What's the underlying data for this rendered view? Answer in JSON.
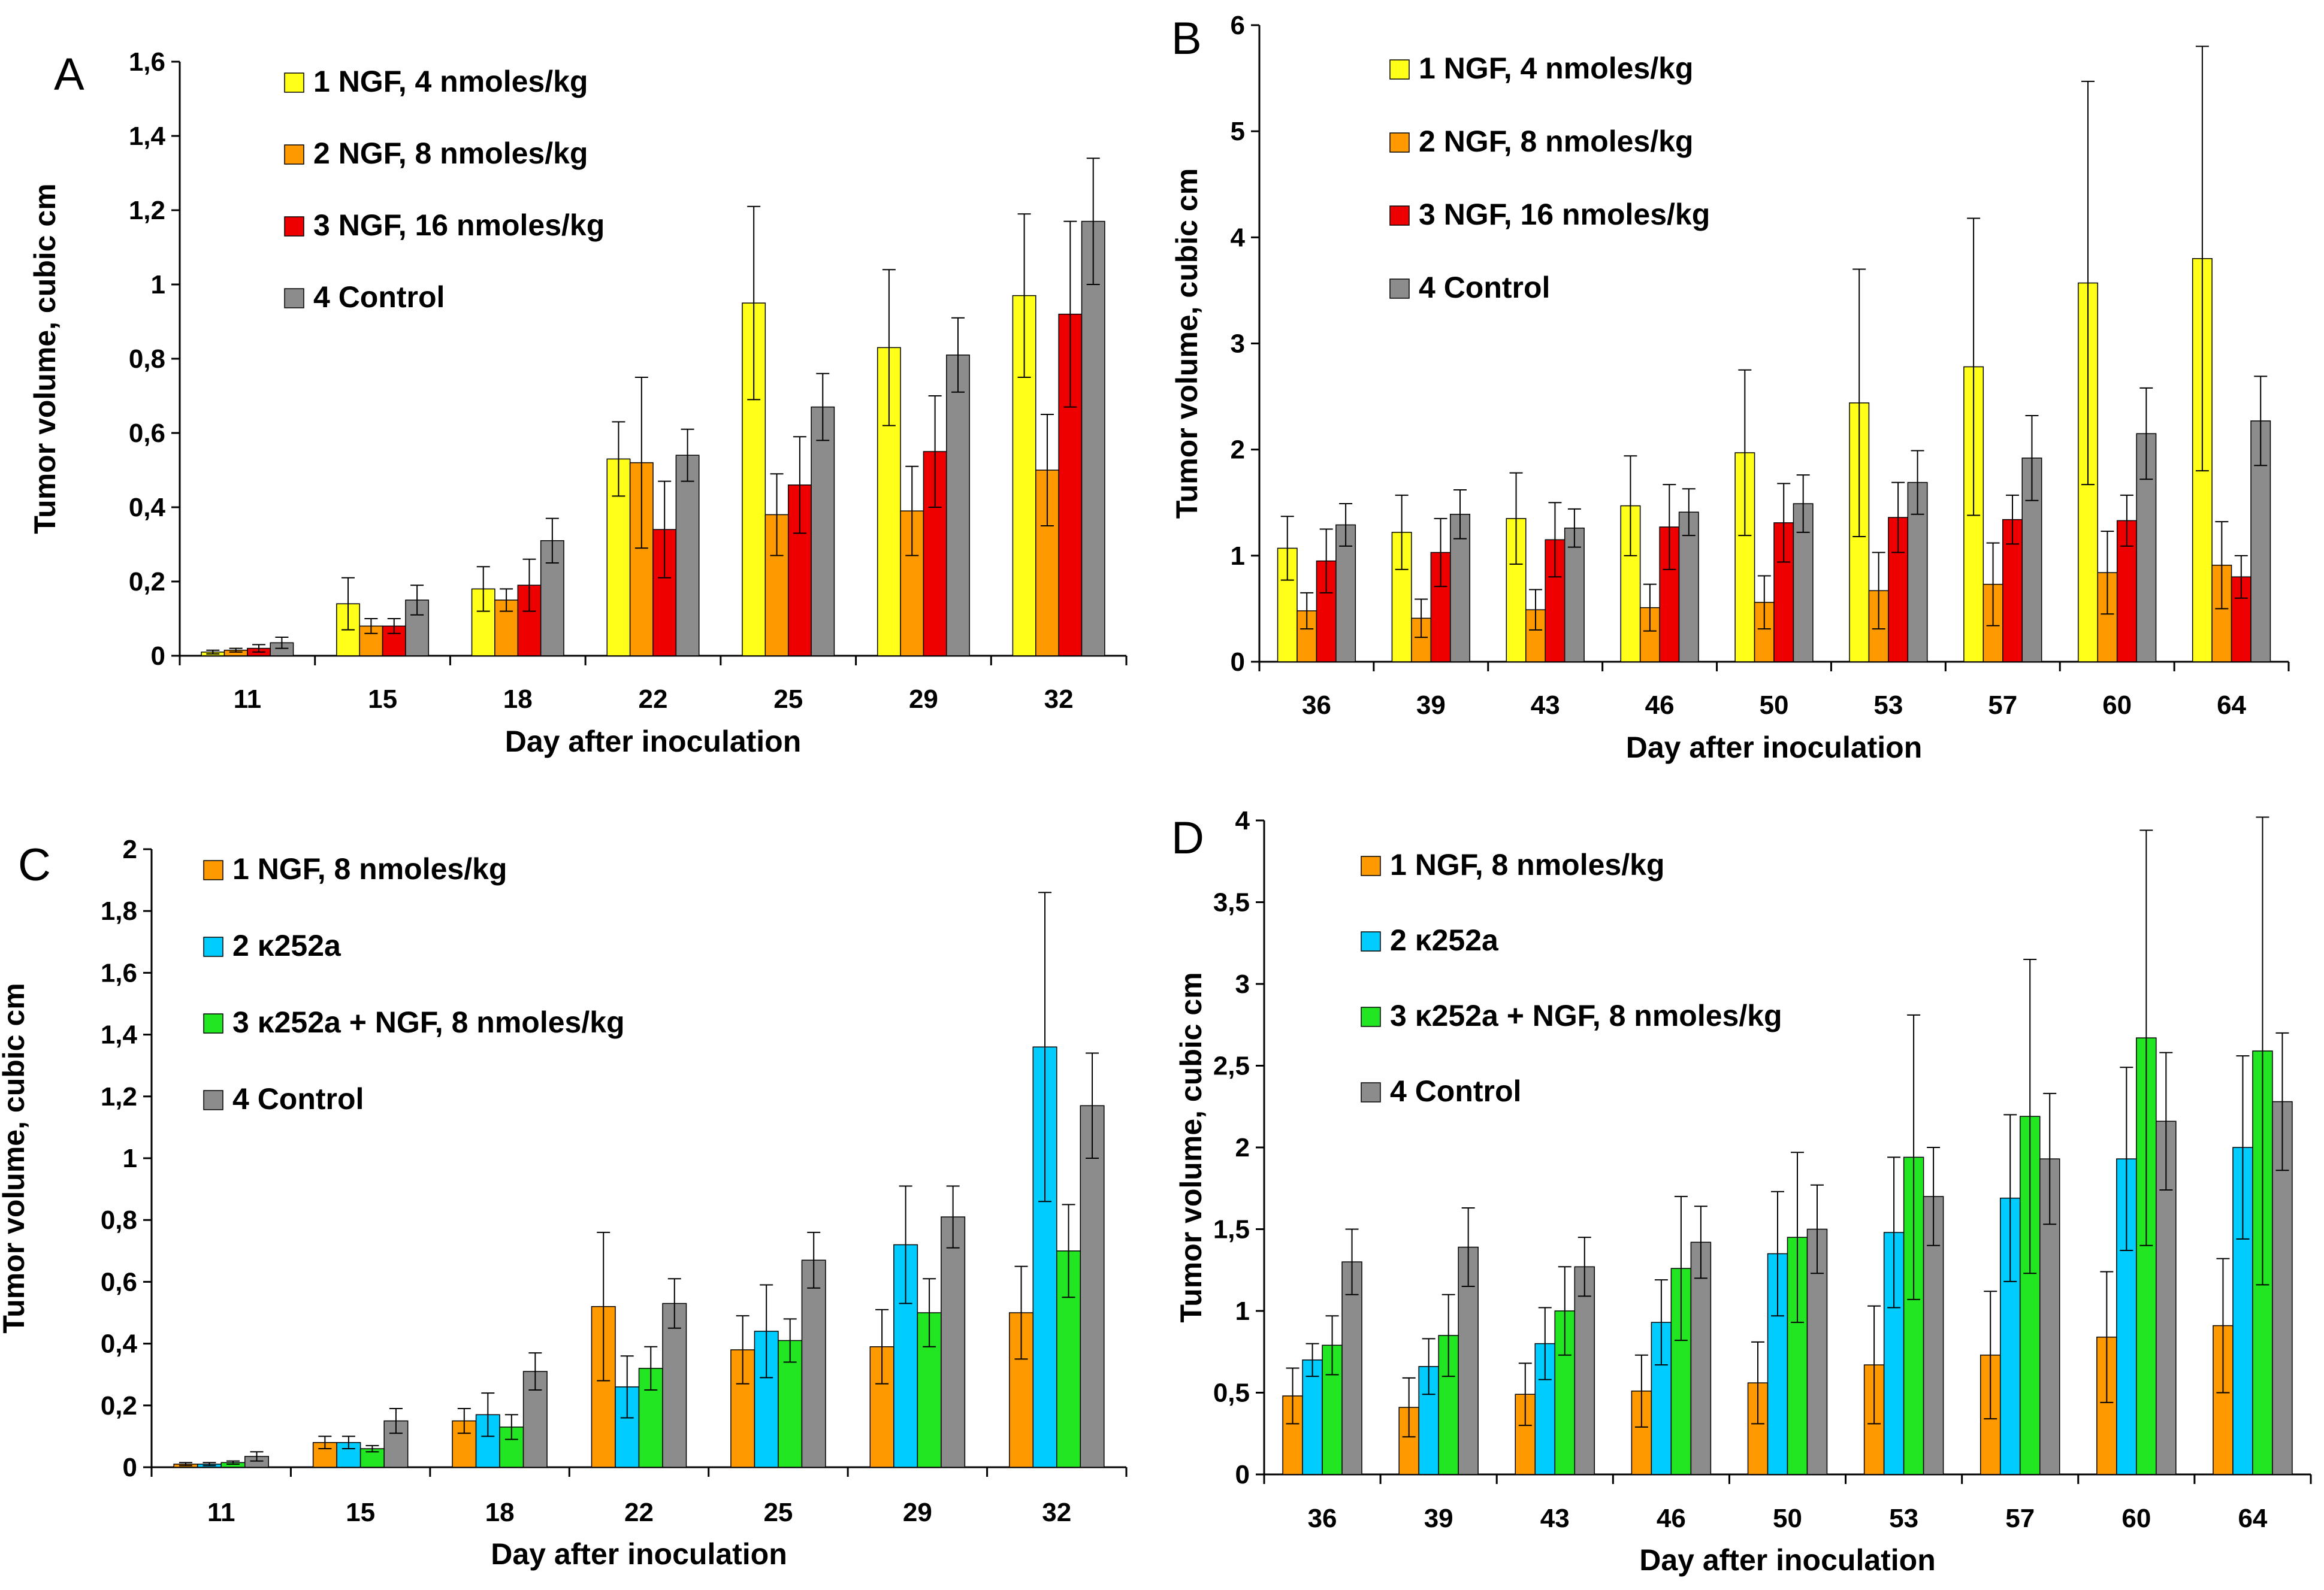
{
  "colors": {
    "yellow": "#FFFF1A",
    "orange": "#FF9900",
    "red": "#EE0000",
    "gray": "#8C8C8C",
    "blue": "#00CCFF",
    "green": "#22E622",
    "bar_border": "#000000"
  },
  "chart_data": [
    {
      "type": "bar",
      "panel": "A",
      "xlabel": "Day after inoculation",
      "ylabel": "Tumor volume, cubic cm",
      "ylim": [
        0,
        1.6
      ],
      "yticks": [
        "0",
        "0,2",
        "0,4",
        "0,6",
        "0,8",
        "1",
        "1,2",
        "1,4",
        "1,6"
      ],
      "categories": [
        "11",
        "15",
        "18",
        "22",
        "25",
        "29",
        "32"
      ],
      "legend_position": "top-left",
      "series": [
        {
          "name": "1 NGF, 4 nmoles/kg",
          "color": "yellow",
          "values": [
            0.01,
            0.14,
            0.18,
            0.53,
            0.95,
            0.83,
            0.97
          ],
          "errors": [
            0.005,
            0.07,
            0.06,
            0.1,
            0.26,
            0.21,
            0.22
          ]
        },
        {
          "name": "2 NGF, 8 nmoles/kg",
          "color": "orange",
          "values": [
            0.015,
            0.08,
            0.15,
            0.52,
            0.38,
            0.39,
            0.5
          ],
          "errors": [
            0.005,
            0.02,
            0.03,
            0.23,
            0.11,
            0.12,
            0.15
          ]
        },
        {
          "name": "3 NGF, 16 nmoles/kg",
          "color": "red",
          "values": [
            0.02,
            0.08,
            0.19,
            0.34,
            0.46,
            0.55,
            0.92
          ],
          "errors": [
            0.01,
            0.02,
            0.07,
            0.13,
            0.13,
            0.15,
            0.25
          ]
        },
        {
          "name": "4 Control",
          "color": "gray",
          "values": [
            0.035,
            0.15,
            0.31,
            0.54,
            0.67,
            0.81,
            1.17
          ],
          "errors": [
            0.015,
            0.04,
            0.06,
            0.07,
            0.09,
            0.1,
            0.17
          ]
        }
      ]
    },
    {
      "type": "bar",
      "panel": "B",
      "xlabel": "Day after inoculation",
      "ylabel": "Tumor volume, cubic cm",
      "ylim": [
        0,
        6
      ],
      "yticks": [
        "0",
        "1",
        "2",
        "3",
        "4",
        "5",
        "6"
      ],
      "categories": [
        "36",
        "39",
        "43",
        "46",
        "50",
        "53",
        "57",
        "60",
        "64"
      ],
      "legend_position": "top-left",
      "series": [
        {
          "name": "1 NGF, 4 nmoles/kg",
          "color": "yellow",
          "values": [
            1.07,
            1.22,
            1.35,
            1.47,
            1.97,
            2.44,
            2.78,
            3.57,
            3.8
          ],
          "errors": [
            0.3,
            0.35,
            0.43,
            0.47,
            0.78,
            1.26,
            1.4,
            1.9,
            2.0
          ]
        },
        {
          "name": "2 NGF, 8 nmoles/kg",
          "color": "orange",
          "values": [
            0.48,
            0.41,
            0.49,
            0.51,
            0.56,
            0.67,
            0.73,
            0.84,
            0.91
          ],
          "errors": [
            0.17,
            0.18,
            0.19,
            0.22,
            0.25,
            0.36,
            0.39,
            0.39,
            0.41
          ]
        },
        {
          "name": "3 NGF, 16 nmoles/kg",
          "color": "red",
          "values": [
            0.95,
            1.03,
            1.15,
            1.27,
            1.31,
            1.36,
            1.34,
            1.33,
            0.8
          ],
          "errors": [
            0.3,
            0.32,
            0.35,
            0.4,
            0.37,
            0.33,
            0.23,
            0.24,
            0.2
          ]
        },
        {
          "name": "4 Control",
          "color": "gray",
          "values": [
            1.29,
            1.39,
            1.26,
            1.41,
            1.49,
            1.69,
            1.92,
            2.15,
            2.27
          ],
          "errors": [
            0.2,
            0.23,
            0.18,
            0.22,
            0.27,
            0.3,
            0.4,
            0.43,
            0.42
          ]
        }
      ]
    },
    {
      "type": "bar",
      "panel": "C",
      "xlabel": "Day after inoculation",
      "ylabel": "Tumor volume, cubic cm",
      "ylim": [
        0,
        2
      ],
      "yticks": [
        "0",
        "0,2",
        "0,4",
        "0,6",
        "0,8",
        "1",
        "1,2",
        "1,4",
        "1,6",
        "1,8",
        "2"
      ],
      "categories": [
        "11",
        "15",
        "18",
        "22",
        "25",
        "29",
        "32"
      ],
      "legend_position": "top-left",
      "series": [
        {
          "name": "1 NGF, 8 nmoles/kg",
          "color": "orange",
          "values": [
            0.01,
            0.08,
            0.15,
            0.52,
            0.38,
            0.39,
            0.5
          ],
          "errors": [
            0.005,
            0.02,
            0.04,
            0.24,
            0.11,
            0.12,
            0.15
          ]
        },
        {
          "name": "2 κ252a",
          "color": "blue",
          "values": [
            0.01,
            0.08,
            0.17,
            0.26,
            0.44,
            0.72,
            1.36
          ],
          "errors": [
            0.005,
            0.02,
            0.07,
            0.1,
            0.15,
            0.19,
            0.5
          ]
        },
        {
          "name": "3 κ252a + NGF, 8 nmoles/kg",
          "color": "green",
          "values": [
            0.015,
            0.06,
            0.13,
            0.32,
            0.41,
            0.5,
            0.7
          ],
          "errors": [
            0.005,
            0.01,
            0.04,
            0.07,
            0.07,
            0.11,
            0.15
          ]
        },
        {
          "name": "4 Control",
          "color": "gray",
          "values": [
            0.035,
            0.15,
            0.31,
            0.53,
            0.67,
            0.81,
            1.17
          ],
          "errors": [
            0.015,
            0.04,
            0.06,
            0.08,
            0.09,
            0.1,
            0.17
          ]
        }
      ]
    },
    {
      "type": "bar",
      "panel": "D",
      "xlabel": "Day after inoculation",
      "ylabel": "Tumor volume, cubic cm",
      "ylim": [
        0,
        4
      ],
      "yticks": [
        "0",
        "0,5",
        "1",
        "1,5",
        "2",
        "2,5",
        "3",
        "3,5",
        "4"
      ],
      "categories": [
        "36",
        "39",
        "43",
        "46",
        "50",
        "53",
        "57",
        "60",
        "64"
      ],
      "legend_position": "top-left",
      "series": [
        {
          "name": "1 NGF, 8 nmoles/kg",
          "color": "orange",
          "values": [
            0.48,
            0.41,
            0.49,
            0.51,
            0.56,
            0.67,
            0.73,
            0.84,
            0.91
          ],
          "errors": [
            0.17,
            0.18,
            0.19,
            0.22,
            0.25,
            0.36,
            0.39,
            0.4,
            0.41
          ]
        },
        {
          "name": "2 κ252a",
          "color": "blue",
          "values": [
            0.7,
            0.66,
            0.8,
            0.93,
            1.35,
            1.48,
            1.69,
            1.93,
            2.0
          ],
          "errors": [
            0.1,
            0.17,
            0.22,
            0.26,
            0.38,
            0.46,
            0.51,
            0.56,
            0.56
          ]
        },
        {
          "name": "3 κ252a + NGF, 8 nmoles/kg",
          "color": "green",
          "values": [
            0.79,
            0.85,
            1.0,
            1.26,
            1.45,
            1.94,
            2.19,
            2.67,
            2.59
          ],
          "errors": [
            0.18,
            0.25,
            0.27,
            0.44,
            0.52,
            0.87,
            0.96,
            1.27,
            1.43
          ]
        },
        {
          "name": "4 Control",
          "color": "gray",
          "values": [
            1.3,
            1.39,
            1.27,
            1.42,
            1.5,
            1.7,
            1.93,
            2.16,
            2.28
          ],
          "errors": [
            0.2,
            0.24,
            0.18,
            0.22,
            0.27,
            0.3,
            0.4,
            0.42,
            0.42
          ]
        }
      ]
    }
  ]
}
